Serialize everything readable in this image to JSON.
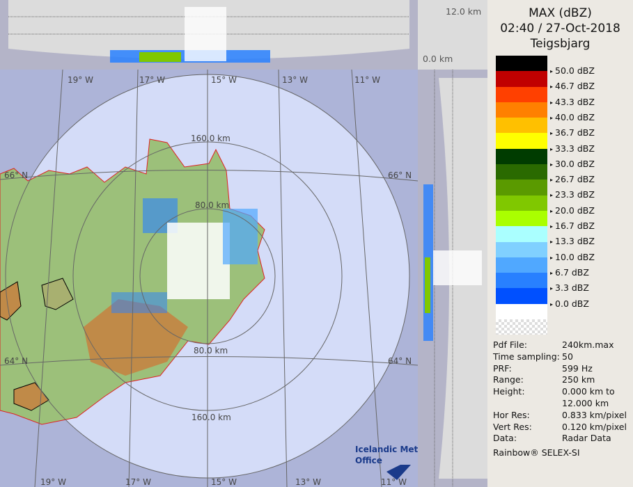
{
  "top_panel": {
    "height_max": "12.0 km",
    "height_min": "0.0 km"
  },
  "map": {
    "lon_labels_top": [
      "19° W",
      "17° W",
      "15° W",
      "13° W",
      "11° W"
    ],
    "lon_labels_bottom": [
      "19° W",
      "17° W",
      "15° W",
      "13° W",
      "11° W"
    ],
    "lat_labels": {
      "left_66": "66° N",
      "right_66": "66° N",
      "left_64": "64° N",
      "right_64": "64° N"
    },
    "range_labels": {
      "top_160": "160.0 km",
      "mid_80_top": "80.0 km",
      "bottom_80": "80.0 km",
      "bottom_160": "160.0 km"
    },
    "logo": {
      "line1": "Icelandic Met",
      "line2": "Office"
    }
  },
  "panel": {
    "product": "MAX (dBZ)",
    "datetime": "02:40 / 27-Oct-2018",
    "site": "Teigsbjarg",
    "legend": [
      {
        "color": "#000000",
        "label": "50.0 dBZ"
      },
      {
        "color": "#c00000",
        "label": "46.7 dBZ"
      },
      {
        "color": "#ff4000",
        "label": "43.3 dBZ"
      },
      {
        "color": "#ff8000",
        "label": "40.0 dBZ"
      },
      {
        "color": "#ffc000",
        "label": "36.7 dBZ"
      },
      {
        "color": "#ffff00",
        "label": "33.3 dBZ"
      },
      {
        "color": "#003c00",
        "label": "30.0 dBZ"
      },
      {
        "color": "#2a6a00",
        "label": "26.7 dBZ"
      },
      {
        "color": "#5a9a00",
        "label": "23.3 dBZ"
      },
      {
        "color": "#80c800",
        "label": "20.0 dBZ"
      },
      {
        "color": "#aaff00",
        "label": "16.7 dBZ"
      },
      {
        "color": "#aaffff",
        "label": "13.3 dBZ"
      },
      {
        "color": "#80d0ff",
        "label": "10.0 dBZ"
      },
      {
        "color": "#50a8ff",
        "label": "6.7 dBZ"
      },
      {
        "color": "#2880ff",
        "label": "3.3 dBZ"
      },
      {
        "color": "#0050ff",
        "label": "0.0 dBZ"
      },
      {
        "color": "#ffffff",
        "label": ""
      }
    ],
    "info": [
      {
        "key": "Pdf File:",
        "value": "240km.max"
      },
      {
        "key": "Time sampling:",
        "value": "50"
      },
      {
        "key": "PRF:",
        "value": "599 Hz"
      },
      {
        "key": "Range:",
        "value": "250 km"
      },
      {
        "key": "Height:",
        "value": "0.000 km to"
      },
      {
        "key": "",
        "value": "12.000 km"
      },
      {
        "key": "Hor Res:",
        "value": "0.833 km/pixel"
      },
      {
        "key": "Vert Res:",
        "value": "0.120 km/pixel"
      },
      {
        "key": "Data:",
        "value": "Radar Data"
      }
    ],
    "footer": "Rainbow® SELEX-SI"
  }
}
